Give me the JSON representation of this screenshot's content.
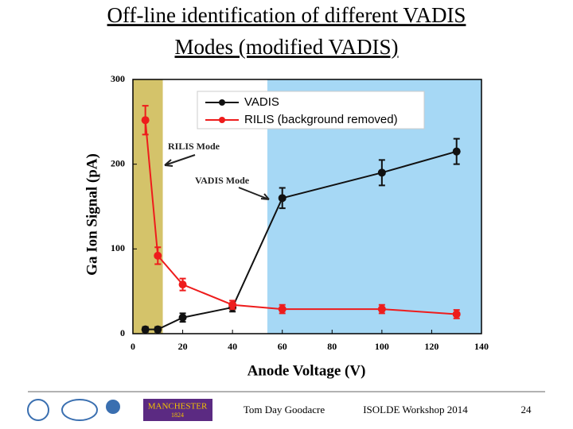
{
  "slide": {
    "title_line1": "Off-line identification of different VADIS",
    "title_line2": "Modes (modified VADIS)",
    "footer": {
      "author": "Tom Day Goodacre",
      "event": "ISOLDE Workshop 2014",
      "page": "24",
      "logo_text": "MANCHESTER",
      "logo_year": "1824"
    }
  },
  "chart_data": {
    "type": "line",
    "x_label": "Anode Voltage (V)",
    "y_label": "Ga Ion Signal (pA)",
    "x": [
      5,
      10,
      20,
      40,
      60,
      100,
      130
    ],
    "series": [
      {
        "name": "VADIS",
        "color": "#111111",
        "values": [
          5,
          5,
          19,
          31,
          160,
          190,
          215
        ],
        "errors": [
          3,
          3,
          5,
          5,
          12,
          15,
          15
        ]
      },
      {
        "name": "RILIS (background removed)",
        "color": "#ee1c1c",
        "values": [
          252,
          92,
          58,
          34,
          29,
          29,
          23
        ],
        "errors": [
          17,
          10,
          7,
          5,
          5,
          5,
          5
        ]
      }
    ],
    "regions": [
      {
        "xlim": [
          0,
          12
        ],
        "color": "#d4c36a"
      },
      {
        "xlim": [
          54,
          140
        ],
        "color": "#a6d8f5"
      }
    ],
    "annotations": [
      "RILIS Mode",
      "VADIS Mode"
    ],
    "xlim": [
      0,
      140
    ],
    "xticks": [
      0,
      20,
      40,
      60,
      80,
      100,
      120,
      140
    ],
    "ylim": [
      0,
      300
    ],
    "yticks": [
      0,
      100,
      200,
      300
    ],
    "legend": "top"
  }
}
